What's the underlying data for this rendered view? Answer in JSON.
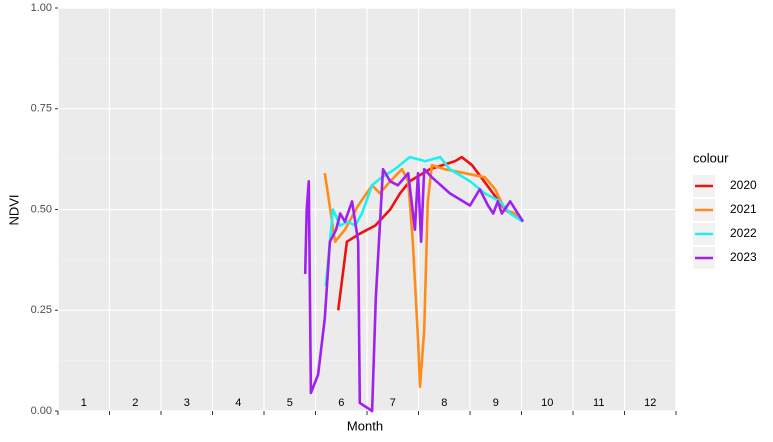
{
  "chart_data": {
    "type": "line",
    "x_label": "Month",
    "y_label": "NDVI",
    "legend_title": "colour",
    "xlim": [
      0,
      12
    ],
    "month_bounds": [
      0,
      1,
      2,
      3,
      4,
      5,
      6,
      7,
      8,
      9,
      10,
      11,
      12
    ],
    "xticks": [
      {
        "value": 0.5,
        "label": "1"
      },
      {
        "value": 1.5,
        "label": "2"
      },
      {
        "value": 2.5,
        "label": "3"
      },
      {
        "value": 3.5,
        "label": "4"
      },
      {
        "value": 4.5,
        "label": "5"
      },
      {
        "value": 5.5,
        "label": "6"
      },
      {
        "value": 6.5,
        "label": "7"
      },
      {
        "value": 7.5,
        "label": "8"
      },
      {
        "value": 8.5,
        "label": "9"
      },
      {
        "value": 9.5,
        "label": "10"
      },
      {
        "value": 10.5,
        "label": "11"
      },
      {
        "value": 11.5,
        "label": "12"
      }
    ],
    "ylim": [
      0,
      1
    ],
    "yticks": [
      {
        "value": 0,
        "label": "0.00"
      },
      0.25,
      {
        "value": 0.5,
        "label": "0.50"
      },
      0.75,
      {
        "value": 1,
        "label": "1.00"
      }
    ],
    "grid": true,
    "legend": "right",
    "series": [
      {
        "name": "2020",
        "color": "#ee1111",
        "x": [
          5.44,
          5.61,
          5.86,
          6.16,
          6.45,
          6.64,
          6.83,
          7.22,
          7.71,
          7.84,
          8.04,
          8.39,
          8.68,
          9.03
        ],
        "values": [
          0.25,
          0.42,
          0.44,
          0.46,
          0.5,
          0.54,
          0.57,
          0.6,
          0.62,
          0.63,
          0.61,
          0.55,
          0.5,
          0.47
        ]
      },
      {
        "name": "2021",
        "color": "#ff8c1a",
        "x": [
          5.18,
          5.38,
          5.57,
          5.83,
          6.1,
          6.25,
          6.45,
          6.68,
          6.8,
          6.89,
          6.99,
          7.03,
          7.11,
          7.18,
          7.26,
          7.51,
          7.9,
          8.29,
          8.49,
          8.68,
          8.87,
          9.03
        ],
        "values": [
          0.59,
          0.42,
          0.45,
          0.51,
          0.56,
          0.54,
          0.57,
          0.6,
          0.57,
          0.42,
          0.18,
          0.06,
          0.2,
          0.52,
          0.61,
          0.6,
          0.59,
          0.58,
          0.55,
          0.5,
          0.49,
          0.47
        ]
      },
      {
        "name": "2022",
        "color": "#1ef0f0",
        "x": [
          5.2,
          5.34,
          5.48,
          5.63,
          5.77,
          5.9,
          6.1,
          6.29,
          6.54,
          6.83,
          7.13,
          7.42,
          7.61,
          8.0,
          8.29,
          8.58,
          8.78,
          9.03
        ],
        "values": [
          0.31,
          0.5,
          0.46,
          0.47,
          0.46,
          0.49,
          0.56,
          0.58,
          0.6,
          0.63,
          0.62,
          0.63,
          0.6,
          0.57,
          0.54,
          0.52,
          0.49,
          0.47
        ]
      },
      {
        "name": "2023",
        "color": "#a020f0",
        "x": [
          4.8,
          4.83,
          4.87,
          4.91,
          5.05,
          5.18,
          5.28,
          5.4,
          5.48,
          5.57,
          5.71,
          5.83,
          5.86,
          6.1,
          6.17,
          6.31,
          6.45,
          6.6,
          6.8,
          6.93,
          6.99,
          7.05,
          7.11,
          7.26,
          7.61,
          8.0,
          8.19,
          8.35,
          8.45,
          8.54,
          8.62,
          8.78,
          9.03
        ],
        "values": [
          0.34,
          0.5,
          0.57,
          0.045,
          0.09,
          0.23,
          0.42,
          0.45,
          0.49,
          0.47,
          0.52,
          0.42,
          0.02,
          0.0,
          0.28,
          0.6,
          0.57,
          0.56,
          0.59,
          0.45,
          0.59,
          0.42,
          0.6,
          0.58,
          0.54,
          0.51,
          0.55,
          0.51,
          0.49,
          0.52,
          0.49,
          0.52,
          0.47
        ]
      }
    ]
  }
}
